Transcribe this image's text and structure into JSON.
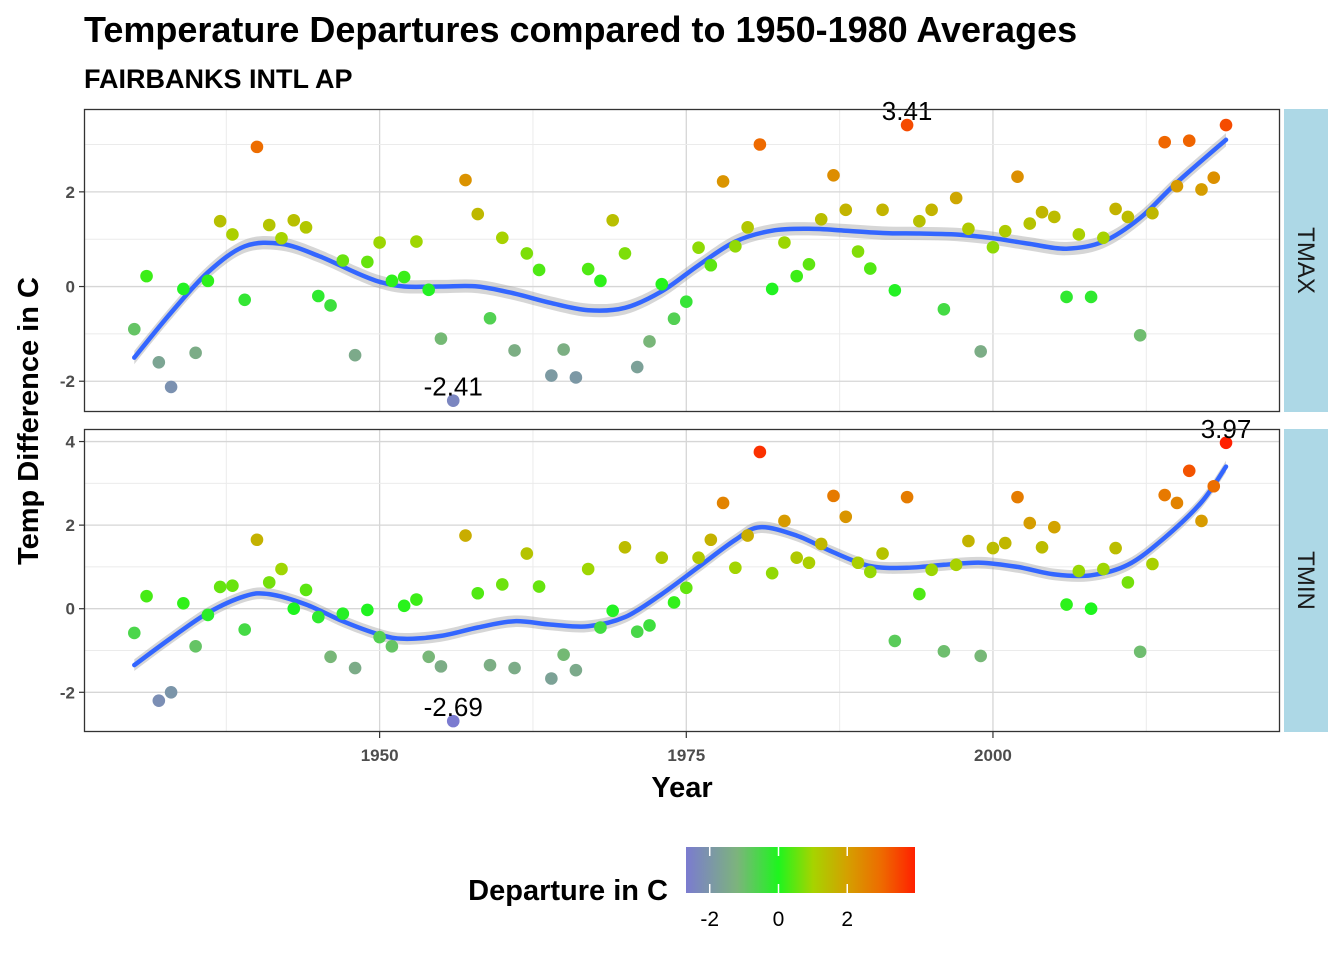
{
  "chart_data": {
    "type": "scatter",
    "title": "Temperature Departures compared to 1950-1980 Averages",
    "subtitle": "FAIRBANKS INTL AP",
    "xlabel": "Year",
    "ylabel": "Temp Difference in C",
    "xlim": [
      1925.9,
      2023.4
    ],
    "x_ticks": [
      1950,
      1975,
      2000
    ],
    "x_tick_labels": [
      "1950",
      "1975",
      "2000"
    ],
    "legend": {
      "title": "Departure in C",
      "placement": "bottom",
      "range": [
        -2.69,
        3.97
      ],
      "ticks": [
        -2,
        0,
        2
      ],
      "tick_labels": [
        "-2",
        "0",
        "2"
      ],
      "color_stops": [
        {
          "value": -2.69,
          "color": "#7b7bd0"
        },
        {
          "value": -1.2,
          "color": "#7cb47c"
        },
        {
          "value": 0,
          "color": "#1ef51e"
        },
        {
          "value": 1.0,
          "color": "#a6d400"
        },
        {
          "value": 2.0,
          "color": "#d4a000"
        },
        {
          "value": 3.0,
          "color": "#ee6a00"
        },
        {
          "value": 3.97,
          "color": "#ff2000"
        }
      ]
    },
    "smooth_color": "#3366ff",
    "strip_color": "#add8e6",
    "facets": [
      {
        "name": "TMAX",
        "ylim": [
          -2.65,
          3.75
        ],
        "y_ticks": [
          -2,
          0,
          2
        ],
        "y_tick_labels": [
          "-2",
          "0",
          "2"
        ],
        "points": [
          [
            1930,
            -0.9
          ],
          [
            1931,
            0.22
          ],
          [
            1932,
            -1.6
          ],
          [
            1933,
            -2.12
          ],
          [
            1934,
            -0.05
          ],
          [
            1935,
            -1.4
          ],
          [
            1936,
            0.12
          ],
          [
            1937,
            1.38
          ],
          [
            1938,
            1.1
          ],
          [
            1939,
            -0.28
          ],
          [
            1940,
            2.95
          ],
          [
            1941,
            1.3
          ],
          [
            1942,
            1.02
          ],
          [
            1943,
            1.4
          ],
          [
            1944,
            1.25
          ],
          [
            1945,
            -0.2
          ],
          [
            1946,
            -0.4
          ],
          [
            1947,
            0.55
          ],
          [
            1948,
            -1.45
          ],
          [
            1949,
            0.52
          ],
          [
            1950,
            0.93
          ],
          [
            1951,
            0.12
          ],
          [
            1952,
            0.2
          ],
          [
            1953,
            0.95
          ],
          [
            1954,
            -0.07
          ],
          [
            1955,
            -1.1
          ],
          [
            1956,
            -2.41
          ],
          [
            1957,
            2.25
          ],
          [
            1958,
            1.53
          ],
          [
            1959,
            -0.67
          ],
          [
            1960,
            1.03
          ],
          [
            1961,
            -1.35
          ],
          [
            1962,
            0.7
          ],
          [
            1963,
            0.35
          ],
          [
            1964,
            -1.88
          ],
          [
            1965,
            -1.33
          ],
          [
            1966,
            -1.92
          ],
          [
            1967,
            0.37
          ],
          [
            1968,
            0.12
          ],
          [
            1969,
            1.4
          ],
          [
            1970,
            0.7
          ],
          [
            1971,
            -1.7
          ],
          [
            1972,
            -1.16
          ],
          [
            1973,
            0.05
          ],
          [
            1974,
            -0.68
          ],
          [
            1975,
            -0.32
          ],
          [
            1976,
            0.82
          ],
          [
            1977,
            0.45
          ],
          [
            1978,
            2.22
          ],
          [
            1979,
            0.85
          ],
          [
            1980,
            1.25
          ],
          [
            1981,
            3.0
          ],
          [
            1982,
            -0.05
          ],
          [
            1983,
            0.93
          ],
          [
            1984,
            0.22
          ],
          [
            1985,
            0.47
          ],
          [
            1986,
            1.42
          ],
          [
            1987,
            2.35
          ],
          [
            1988,
            1.62
          ],
          [
            1989,
            0.74
          ],
          [
            1990,
            0.38
          ],
          [
            1991,
            1.62
          ],
          [
            1992,
            -0.08
          ],
          [
            1993,
            3.41
          ],
          [
            1994,
            1.38
          ],
          [
            1995,
            1.62
          ],
          [
            1996,
            -0.48
          ],
          [
            1997,
            1.87
          ],
          [
            1998,
            1.22
          ],
          [
            1999,
            -1.37
          ],
          [
            2000,
            0.83
          ],
          [
            2001,
            1.17
          ],
          [
            2002,
            2.32
          ],
          [
            2003,
            1.33
          ],
          [
            2004,
            1.57
          ],
          [
            2005,
            1.47
          ],
          [
            2006,
            -0.22
          ],
          [
            2007,
            1.1
          ],
          [
            2008,
            -0.22
          ],
          [
            2009,
            1.03
          ],
          [
            2010,
            1.64
          ],
          [
            2011,
            1.47
          ],
          [
            2012,
            -1.03
          ],
          [
            2013,
            1.55
          ],
          [
            2014,
            3.05
          ],
          [
            2015,
            2.12
          ],
          [
            2016,
            3.08
          ],
          [
            2017,
            2.05
          ],
          [
            2018,
            2.3
          ],
          [
            2019,
            3.41
          ]
        ],
        "smooth": [
          [
            1930,
            -1.5
          ],
          [
            1933,
            -0.55
          ],
          [
            1936,
            0.3
          ],
          [
            1939,
            0.85
          ],
          [
            1942,
            0.9
          ],
          [
            1945,
            0.65
          ],
          [
            1948,
            0.3
          ],
          [
            1950,
            0.1
          ],
          [
            1952,
            0.0
          ],
          [
            1955,
            0.0
          ],
          [
            1958,
            0.0
          ],
          [
            1961,
            -0.15
          ],
          [
            1964,
            -0.35
          ],
          [
            1967,
            -0.5
          ],
          [
            1970,
            -0.45
          ],
          [
            1973,
            -0.1
          ],
          [
            1976,
            0.45
          ],
          [
            1979,
            0.95
          ],
          [
            1982,
            1.18
          ],
          [
            1985,
            1.22
          ],
          [
            1988,
            1.18
          ],
          [
            1991,
            1.13
          ],
          [
            1994,
            1.12
          ],
          [
            1997,
            1.1
          ],
          [
            2000,
            1.02
          ],
          [
            2003,
            0.9
          ],
          [
            2006,
            0.8
          ],
          [
            2009,
            0.95
          ],
          [
            2012,
            1.45
          ],
          [
            2015,
            2.2
          ],
          [
            2019,
            3.1
          ]
        ],
        "labels": [
          {
            "x": 1956,
            "y": -2.41,
            "text": "-2.41"
          },
          {
            "x": 1993,
            "y": 3.41,
            "text": "3.41"
          }
        ]
      },
      {
        "name": "TMIN",
        "ylim": [
          -2.95,
          4.3
        ],
        "y_ticks": [
          -2,
          0,
          2,
          4
        ],
        "y_tick_labels": [
          "-2",
          "0",
          "2",
          "4"
        ],
        "points": [
          [
            1930,
            -0.58
          ],
          [
            1931,
            0.3
          ],
          [
            1932,
            -2.2
          ],
          [
            1933,
            -2.0
          ],
          [
            1934,
            0.13
          ],
          [
            1935,
            -0.9
          ],
          [
            1936,
            -0.15
          ],
          [
            1937,
            0.52
          ],
          [
            1938,
            0.55
          ],
          [
            1939,
            -0.5
          ],
          [
            1940,
            1.65
          ],
          [
            1941,
            0.63
          ],
          [
            1942,
            0.95
          ],
          [
            1943,
            0.0
          ],
          [
            1944,
            0.45
          ],
          [
            1945,
            -0.2
          ],
          [
            1946,
            -1.15
          ],
          [
            1947,
            -0.12
          ],
          [
            1948,
            -1.42
          ],
          [
            1949,
            -0.03
          ],
          [
            1950,
            -0.68
          ],
          [
            1951,
            -0.9
          ],
          [
            1952,
            0.07
          ],
          [
            1953,
            0.22
          ],
          [
            1954,
            -1.15
          ],
          [
            1955,
            -1.38
          ],
          [
            1956,
            -2.69
          ],
          [
            1957,
            1.75
          ],
          [
            1958,
            0.37
          ],
          [
            1959,
            -1.35
          ],
          [
            1960,
            0.58
          ],
          [
            1961,
            -1.42
          ],
          [
            1962,
            1.32
          ],
          [
            1963,
            0.53
          ],
          [
            1964,
            -1.67
          ],
          [
            1965,
            -1.1
          ],
          [
            1966,
            -1.47
          ],
          [
            1967,
            0.95
          ],
          [
            1968,
            -0.45
          ],
          [
            1969,
            -0.05
          ],
          [
            1970,
            1.47
          ],
          [
            1971,
            -0.55
          ],
          [
            1972,
            -0.4
          ],
          [
            1973,
            1.22
          ],
          [
            1974,
            0.15
          ],
          [
            1975,
            0.5
          ],
          [
            1976,
            1.22
          ],
          [
            1977,
            1.65
          ],
          [
            1978,
            2.53
          ],
          [
            1979,
            0.98
          ],
          [
            1980,
            1.75
          ],
          [
            1981,
            3.75
          ],
          [
            1982,
            0.85
          ],
          [
            1983,
            2.1
          ],
          [
            1984,
            1.22
          ],
          [
            1985,
            1.1
          ],
          [
            1986,
            1.55
          ],
          [
            1987,
            2.7
          ],
          [
            1988,
            2.2
          ],
          [
            1989,
            1.1
          ],
          [
            1990,
            0.88
          ],
          [
            1991,
            1.32
          ],
          [
            1992,
            -0.77
          ],
          [
            1993,
            2.67
          ],
          [
            1994,
            0.35
          ],
          [
            1995,
            0.93
          ],
          [
            1996,
            -1.02
          ],
          [
            1997,
            1.05
          ],
          [
            1998,
            1.62
          ],
          [
            1999,
            -1.13
          ],
          [
            2000,
            1.45
          ],
          [
            2001,
            1.57
          ],
          [
            2002,
            2.67
          ],
          [
            2003,
            2.05
          ],
          [
            2004,
            1.47
          ],
          [
            2005,
            1.95
          ],
          [
            2006,
            0.1
          ],
          [
            2007,
            0.9
          ],
          [
            2008,
            0.0
          ],
          [
            2009,
            0.95
          ],
          [
            2010,
            1.45
          ],
          [
            2011,
            0.63
          ],
          [
            2012,
            -1.03
          ],
          [
            2013,
            1.07
          ],
          [
            2014,
            2.72
          ],
          [
            2015,
            2.53
          ],
          [
            2016,
            3.3
          ],
          [
            2017,
            2.1
          ],
          [
            2018,
            2.93
          ],
          [
            2019,
            3.97
          ]
        ],
        "smooth": [
          [
            1930,
            -1.35
          ],
          [
            1933,
            -0.7
          ],
          [
            1936,
            -0.1
          ],
          [
            1939,
            0.3
          ],
          [
            1941,
            0.35
          ],
          [
            1944,
            0.1
          ],
          [
            1947,
            -0.3
          ],
          [
            1950,
            -0.62
          ],
          [
            1952,
            -0.72
          ],
          [
            1955,
            -0.65
          ],
          [
            1958,
            -0.45
          ],
          [
            1961,
            -0.3
          ],
          [
            1964,
            -0.38
          ],
          [
            1967,
            -0.42
          ],
          [
            1970,
            -0.2
          ],
          [
            1973,
            0.35
          ],
          [
            1976,
            1.0
          ],
          [
            1979,
            1.65
          ],
          [
            1981,
            1.95
          ],
          [
            1984,
            1.75
          ],
          [
            1987,
            1.35
          ],
          [
            1990,
            1.02
          ],
          [
            1993,
            0.98
          ],
          [
            1996,
            1.05
          ],
          [
            1999,
            1.1
          ],
          [
            2002,
            1.0
          ],
          [
            2005,
            0.82
          ],
          [
            2008,
            0.8
          ],
          [
            2011,
            1.05
          ],
          [
            2014,
            1.7
          ],
          [
            2017,
            2.55
          ],
          [
            2019,
            3.4
          ]
        ],
        "labels": [
          {
            "x": 1956,
            "y": -2.69,
            "text": "-2.69"
          },
          {
            "x": 2019,
            "y": 3.97,
            "text": "3.97"
          }
        ]
      }
    ]
  }
}
